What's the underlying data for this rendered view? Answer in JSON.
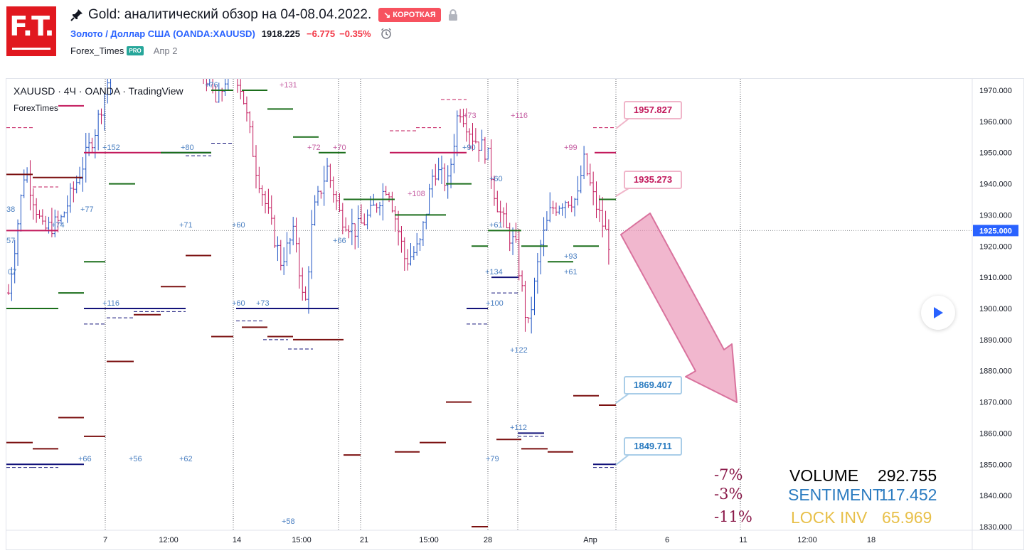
{
  "header": {
    "title": "Gold: аналитический обзор на 04-08.04.2022.",
    "badge_label": "КОРОТКАЯ",
    "symbol": "Золото / Доллар США (OANDA:XAUUSD)",
    "price": "1918.225",
    "change": "−6.775",
    "change_pct": "−0.35%",
    "author": "Forex_Times",
    "author_badge": "PRO",
    "date": "Апр 2",
    "logo_text": "F.T."
  },
  "legend": {
    "symbol_line": "XAUUSD · 4Ч · OANDA · TradingView",
    "indicator": "ForexTimes"
  },
  "colors": {
    "up": "#1e53c3",
    "down": "#c2185b",
    "green_level": "#1b6e1b",
    "maroon_level": "#7b1010",
    "navy_level": "#13137a",
    "magenta_level": "#c2185b",
    "arrow_fill": "#e991b3",
    "accent_blue": "#2962ff"
  },
  "chart_data": {
    "type": "ohlc",
    "symbol": "XAUUSD",
    "timeframe": "4H",
    "ylim": [
      1826,
      1975
    ],
    "y_ticks": [
      "1970.000",
      "1960.000",
      "1950.000",
      "1940.000",
      "1930.000",
      "1920.000",
      "1910.000",
      "1900.000",
      "1890.000",
      "1880.000",
      "1870.000",
      "1860.000",
      "1850.000",
      "1840.000",
      "1830.000"
    ],
    "x_ticks": [
      "7",
      "12:00",
      "14",
      "15:00",
      "21",
      "15:00",
      "28",
      "Апр",
      "6",
      "11",
      "12:00",
      "18"
    ],
    "current_price_label": "1925.000",
    "price_tags": [
      {
        "label": "1957.827",
        "kind": "resistance"
      },
      {
        "label": "1935.273",
        "kind": "resistance"
      },
      {
        "label": "1869.407",
        "kind": "support"
      },
      {
        "label": "1849.711",
        "kind": "support"
      }
    ],
    "annotations": [
      "38",
      "57",
      "07",
      "+74",
      "+77",
      "+152",
      "+116",
      "+66",
      "+56",
      "+80",
      "+71",
      "+62",
      "+76",
      "+60",
      "+60",
      "+73",
      "+131",
      "+58",
      "+72",
      "+70",
      "+66",
      "+108",
      "+73",
      "+90",
      "+60",
      "+61",
      "+116",
      "+134",
      "+100",
      "+122",
      "+112",
      "+79",
      "+99",
      "+93",
      "+61"
    ],
    "stats": [
      {
        "pct": "-7%",
        "label": "VOLUME",
        "value": "292.755"
      },
      {
        "pct": "-3%",
        "label": "SENTIMENT",
        "value": "117.452"
      },
      {
        "pct": "-11%",
        "label": "LOCK INV",
        "value": "65.969"
      }
    ],
    "forecast": {
      "direction": "down",
      "target_label": "1869.407"
    }
  }
}
